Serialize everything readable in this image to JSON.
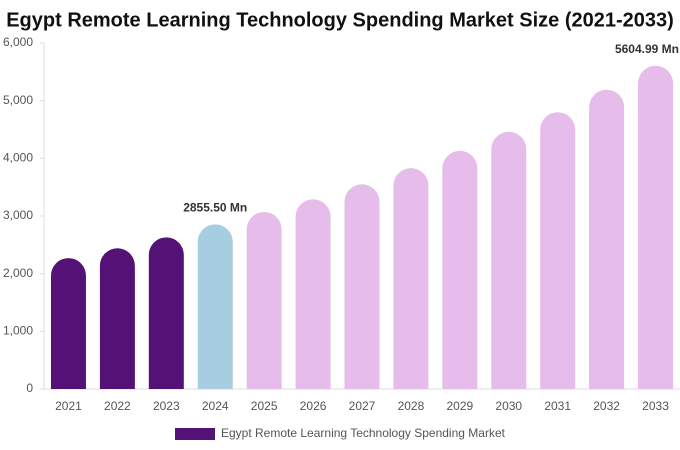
{
  "chart_data": {
    "type": "bar",
    "title": "Egypt Remote Learning Technology Spending Market Size (2021-2033)",
    "categories": [
      "2021",
      "2022",
      "2023",
      "2024",
      "2025",
      "2026",
      "2027",
      "2028",
      "2029",
      "2030",
      "2031",
      "2032",
      "2033"
    ],
    "series": [
      {
        "name": "Egypt Remote Learning Technology Spending Market",
        "color": "#541276",
        "values": [
          2270,
          2440,
          2630,
          2855.5,
          3070,
          3290,
          3550,
          3830,
          4130,
          4460,
          4800,
          5190,
          5604.99
        ],
        "colors": [
          "#541276",
          "#541276",
          "#541276",
          "#a6cde0",
          "#e6bdea",
          "#e6bdea",
          "#e6bdea",
          "#e6bdea",
          "#e6bdea",
          "#e6bdea",
          "#e6bdea",
          "#e6bdea",
          "#e6bdea"
        ],
        "value_labels": [
          null,
          null,
          null,
          "2855.50 Mn",
          null,
          null,
          null,
          null,
          null,
          null,
          null,
          null,
          "5604.99 Mn"
        ]
      }
    ],
    "ylim": [
      0,
      6000
    ],
    "yticks": [
      0,
      {
        "value": 1000,
        "label": "1,000"
      },
      {
        "value": 2000,
        "label": "2,000"
      },
      {
        "value": 3000,
        "label": "3,000"
      },
      {
        "value": 4000,
        "label": "4,000"
      },
      {
        "value": 5000,
        "label": "5,000"
      },
      {
        "value": 6000,
        "label": "6,000"
      }
    ],
    "legend": "bottom"
  }
}
